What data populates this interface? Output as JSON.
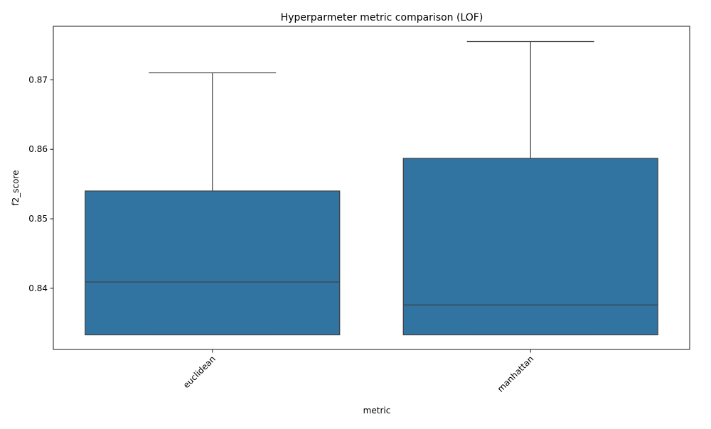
{
  "chart_data": {
    "type": "box",
    "title": "Hyperparmeter metric comparison (LOF)",
    "xlabel": "metric",
    "ylabel": "f2_score",
    "categories": [
      "euclidean",
      "manhattan"
    ],
    "boxes": [
      {
        "category": "euclidean",
        "min": 0.8333,
        "q1": 0.8333,
        "median": 0.8409,
        "q3": 0.854,
        "max": 0.871
      },
      {
        "category": "manhattan",
        "min": 0.8333,
        "q1": 0.8333,
        "median": 0.8376,
        "q3": 0.8587,
        "max": 0.8755
      }
    ],
    "ylim": [
      0.8312,
      0.8777
    ],
    "yticks": [
      {
        "value": 0.84,
        "label": "0.84"
      },
      {
        "value": 0.85,
        "label": "0.85"
      },
      {
        "value": 0.86,
        "label": "0.86"
      },
      {
        "value": 0.87,
        "label": "0.87"
      }
    ],
    "xtick_rotation": 45,
    "grid": false,
    "colors": {
      "box_fill": "#3274a1",
      "line": "#3f3f3f",
      "axis": "#000000"
    }
  }
}
